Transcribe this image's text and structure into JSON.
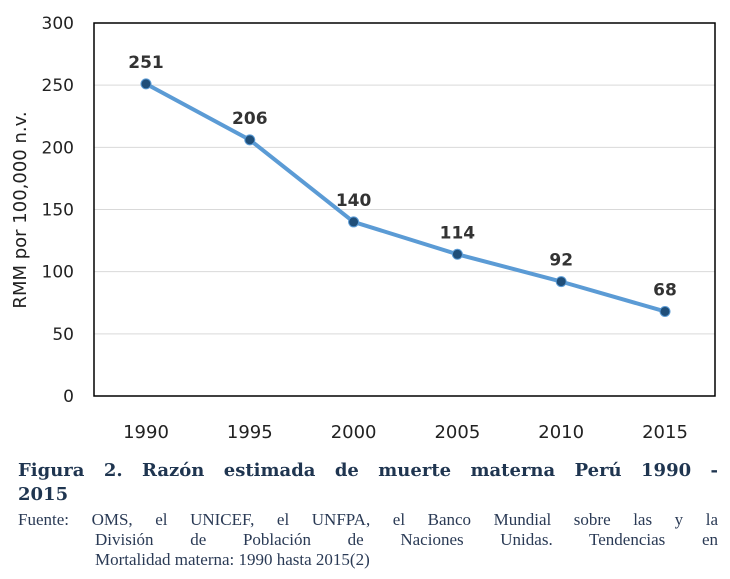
{
  "chart_data": {
    "type": "line",
    "ylabel": "RMM por 100,000 n.v.",
    "xlabel": "",
    "categories": [
      "1990",
      "1995",
      "2000",
      "2005",
      "2010",
      "2015"
    ],
    "values": [
      251,
      206,
      140,
      114,
      92,
      68
    ],
    "ylim": [
      0,
      300
    ],
    "yticks": [
      0,
      50,
      100,
      150,
      200,
      250,
      300
    ],
    "grid": true,
    "line_color": "#5b9bd5",
    "marker_color": "#1f4e79",
    "data_labels": true
  },
  "caption": {
    "title_line1": "Figura 2. Razón estimada de muerte materna Perú 1990 -",
    "title_line2": "2015",
    "source_line1": "Fuente: OMS, el UNICEF, el UNFPA, el Banco Mundial sobre las y la",
    "source_line2": "División de Población de Naciones Unidas. Tendencias en",
    "source_line3": "Mortalidad materna: 1990 hasta 2015(2)"
  }
}
